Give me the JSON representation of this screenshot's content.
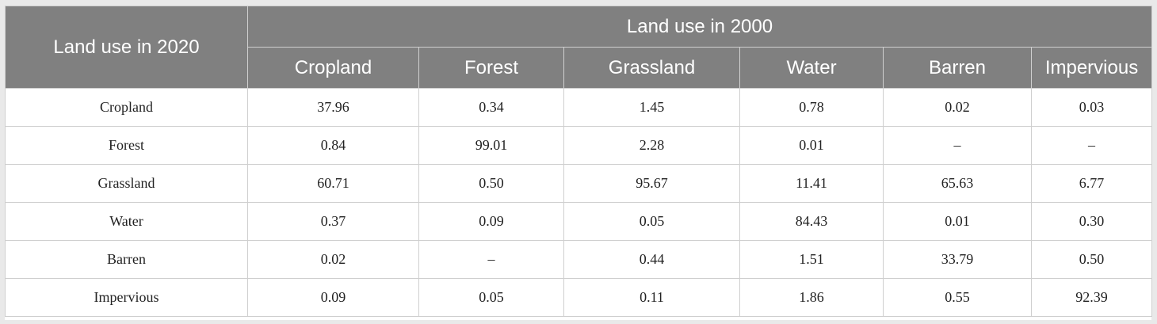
{
  "table": {
    "row_header_title": "Land use in 2020",
    "column_group_title": "Land use in 2000",
    "columns": [
      "Cropland",
      "Forest",
      "Grassland",
      "Water",
      "Barren",
      "Impervious"
    ],
    "rows": [
      {
        "label": "Cropland",
        "values": [
          "37.96",
          "0.34",
          "1.45",
          "0.78",
          "0.02",
          "0.03"
        ]
      },
      {
        "label": "Forest",
        "values": [
          "0.84",
          "99.01",
          "2.28",
          "0.01",
          "–",
          "–"
        ]
      },
      {
        "label": "Grassland",
        "values": [
          "60.71",
          "0.50",
          "95.67",
          "11.41",
          "65.63",
          "6.77"
        ]
      },
      {
        "label": "Water",
        "values": [
          "0.37",
          "0.09",
          "0.05",
          "84.43",
          "0.01",
          "0.30"
        ]
      },
      {
        "label": "Barren",
        "values": [
          "0.02",
          "–",
          "0.44",
          "1.51",
          "33.79",
          "0.50"
        ]
      },
      {
        "label": "Impervious",
        "values": [
          "0.09",
          "0.05",
          "0.11",
          "1.86",
          "0.55",
          "92.39"
        ]
      }
    ]
  }
}
